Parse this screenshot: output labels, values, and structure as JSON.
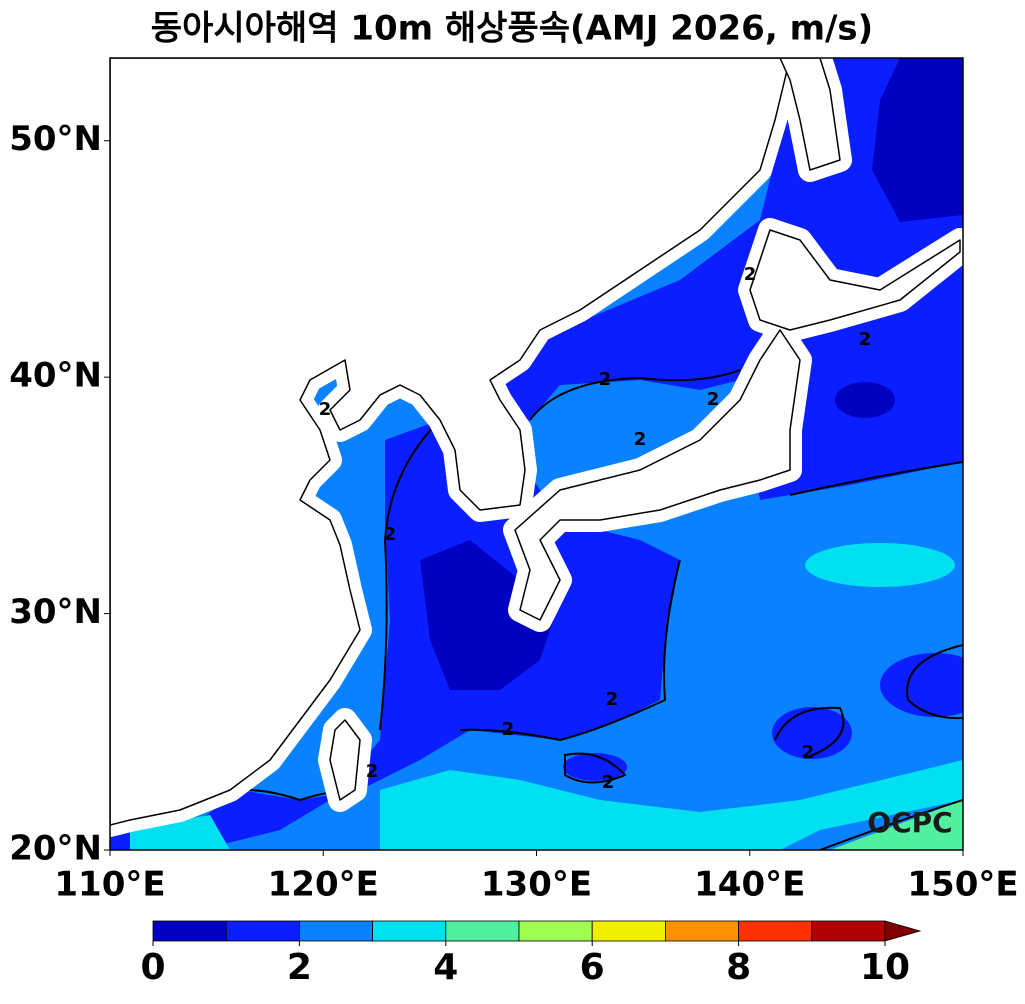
{
  "title": "동아시아해역 10m 해상풍속(AMJ 2026, m/s)",
  "map": {
    "xlim": [
      110,
      150
    ],
    "ylim": [
      20,
      53.5
    ],
    "xticks": [
      {
        "value": 110,
        "label": "110°E"
      },
      {
        "value": 120,
        "label": "120°E"
      },
      {
        "value": 130,
        "label": "130°E"
      },
      {
        "value": 140,
        "label": "140°E"
      },
      {
        "value": 150,
        "label": "150°E"
      }
    ],
    "yticks": [
      {
        "value": 20,
        "label": "20°N"
      },
      {
        "value": 30,
        "label": "30°N"
      },
      {
        "value": 40,
        "label": "40°N"
      },
      {
        "value": 50,
        "label": "50°N"
      }
    ]
  },
  "colorbar": {
    "levels": [
      0,
      1,
      2,
      3,
      4,
      5,
      6,
      7,
      8,
      9,
      10
    ],
    "colors": [
      "#0000c0",
      "#0a1eff",
      "#0a82ff",
      "#00e0f0",
      "#50f0a0",
      "#a0ff50",
      "#f0f000",
      "#ff9000",
      "#ff3000",
      "#b00000"
    ],
    "extend_color": "#7f0000",
    "ticks": [
      0,
      2,
      4,
      6,
      8,
      10
    ]
  },
  "contour_labels": [
    "2",
    "2",
    "2",
    "2",
    "2",
    "2",
    "2",
    "2",
    "2",
    "2",
    "2",
    "2"
  ],
  "watermark": "OCPC"
}
